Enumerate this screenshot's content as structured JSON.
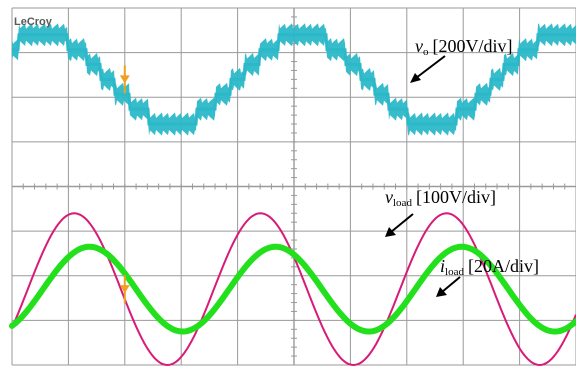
{
  "brand": "LeCroy",
  "annotations": {
    "vo": {
      "symbol": "v",
      "subscript": "o",
      "scale": "[200V/div]"
    },
    "vload": {
      "symbol": "v",
      "subscript": "load",
      "scale": "[100V/div]"
    },
    "iload": {
      "symbol": "i",
      "subscript": "load",
      "scale": "[20A/div]"
    }
  },
  "colors": {
    "vo": "#2bb8c8",
    "vload": "#d81b78",
    "iload": "#22e01c",
    "trigger": "#f0a020",
    "grid": "#9a9a9a",
    "background": "#ffffff"
  },
  "chart_data": {
    "type": "line",
    "title": "",
    "xlabel": "",
    "ylabel": "",
    "grid": true,
    "x_divisions": 10,
    "y_divisions": 8,
    "series": [
      {
        "name": "v_o",
        "units": "V",
        "scale_per_div": 200,
        "waveform": "staircase (multilevel)",
        "levels_div": [
          -2.0,
          -1.4,
          -0.8,
          -0.2,
          0.4,
          1.0
        ],
        "peak_div": 1.0,
        "offset_div": 2.4,
        "period_div": 4.6
      },
      {
        "name": "v_load",
        "units": "V",
        "scale_per_div": 100,
        "waveform": "sine",
        "amplitude_div": 1.7,
        "offset_div": -2.3,
        "period_div": 3.3
      },
      {
        "name": "i_load",
        "units": "A",
        "scale_per_div": 20,
        "waveform": "sine",
        "amplitude_div": 0.95,
        "offset_div": -2.3,
        "period_div": 3.3
      }
    ]
  }
}
